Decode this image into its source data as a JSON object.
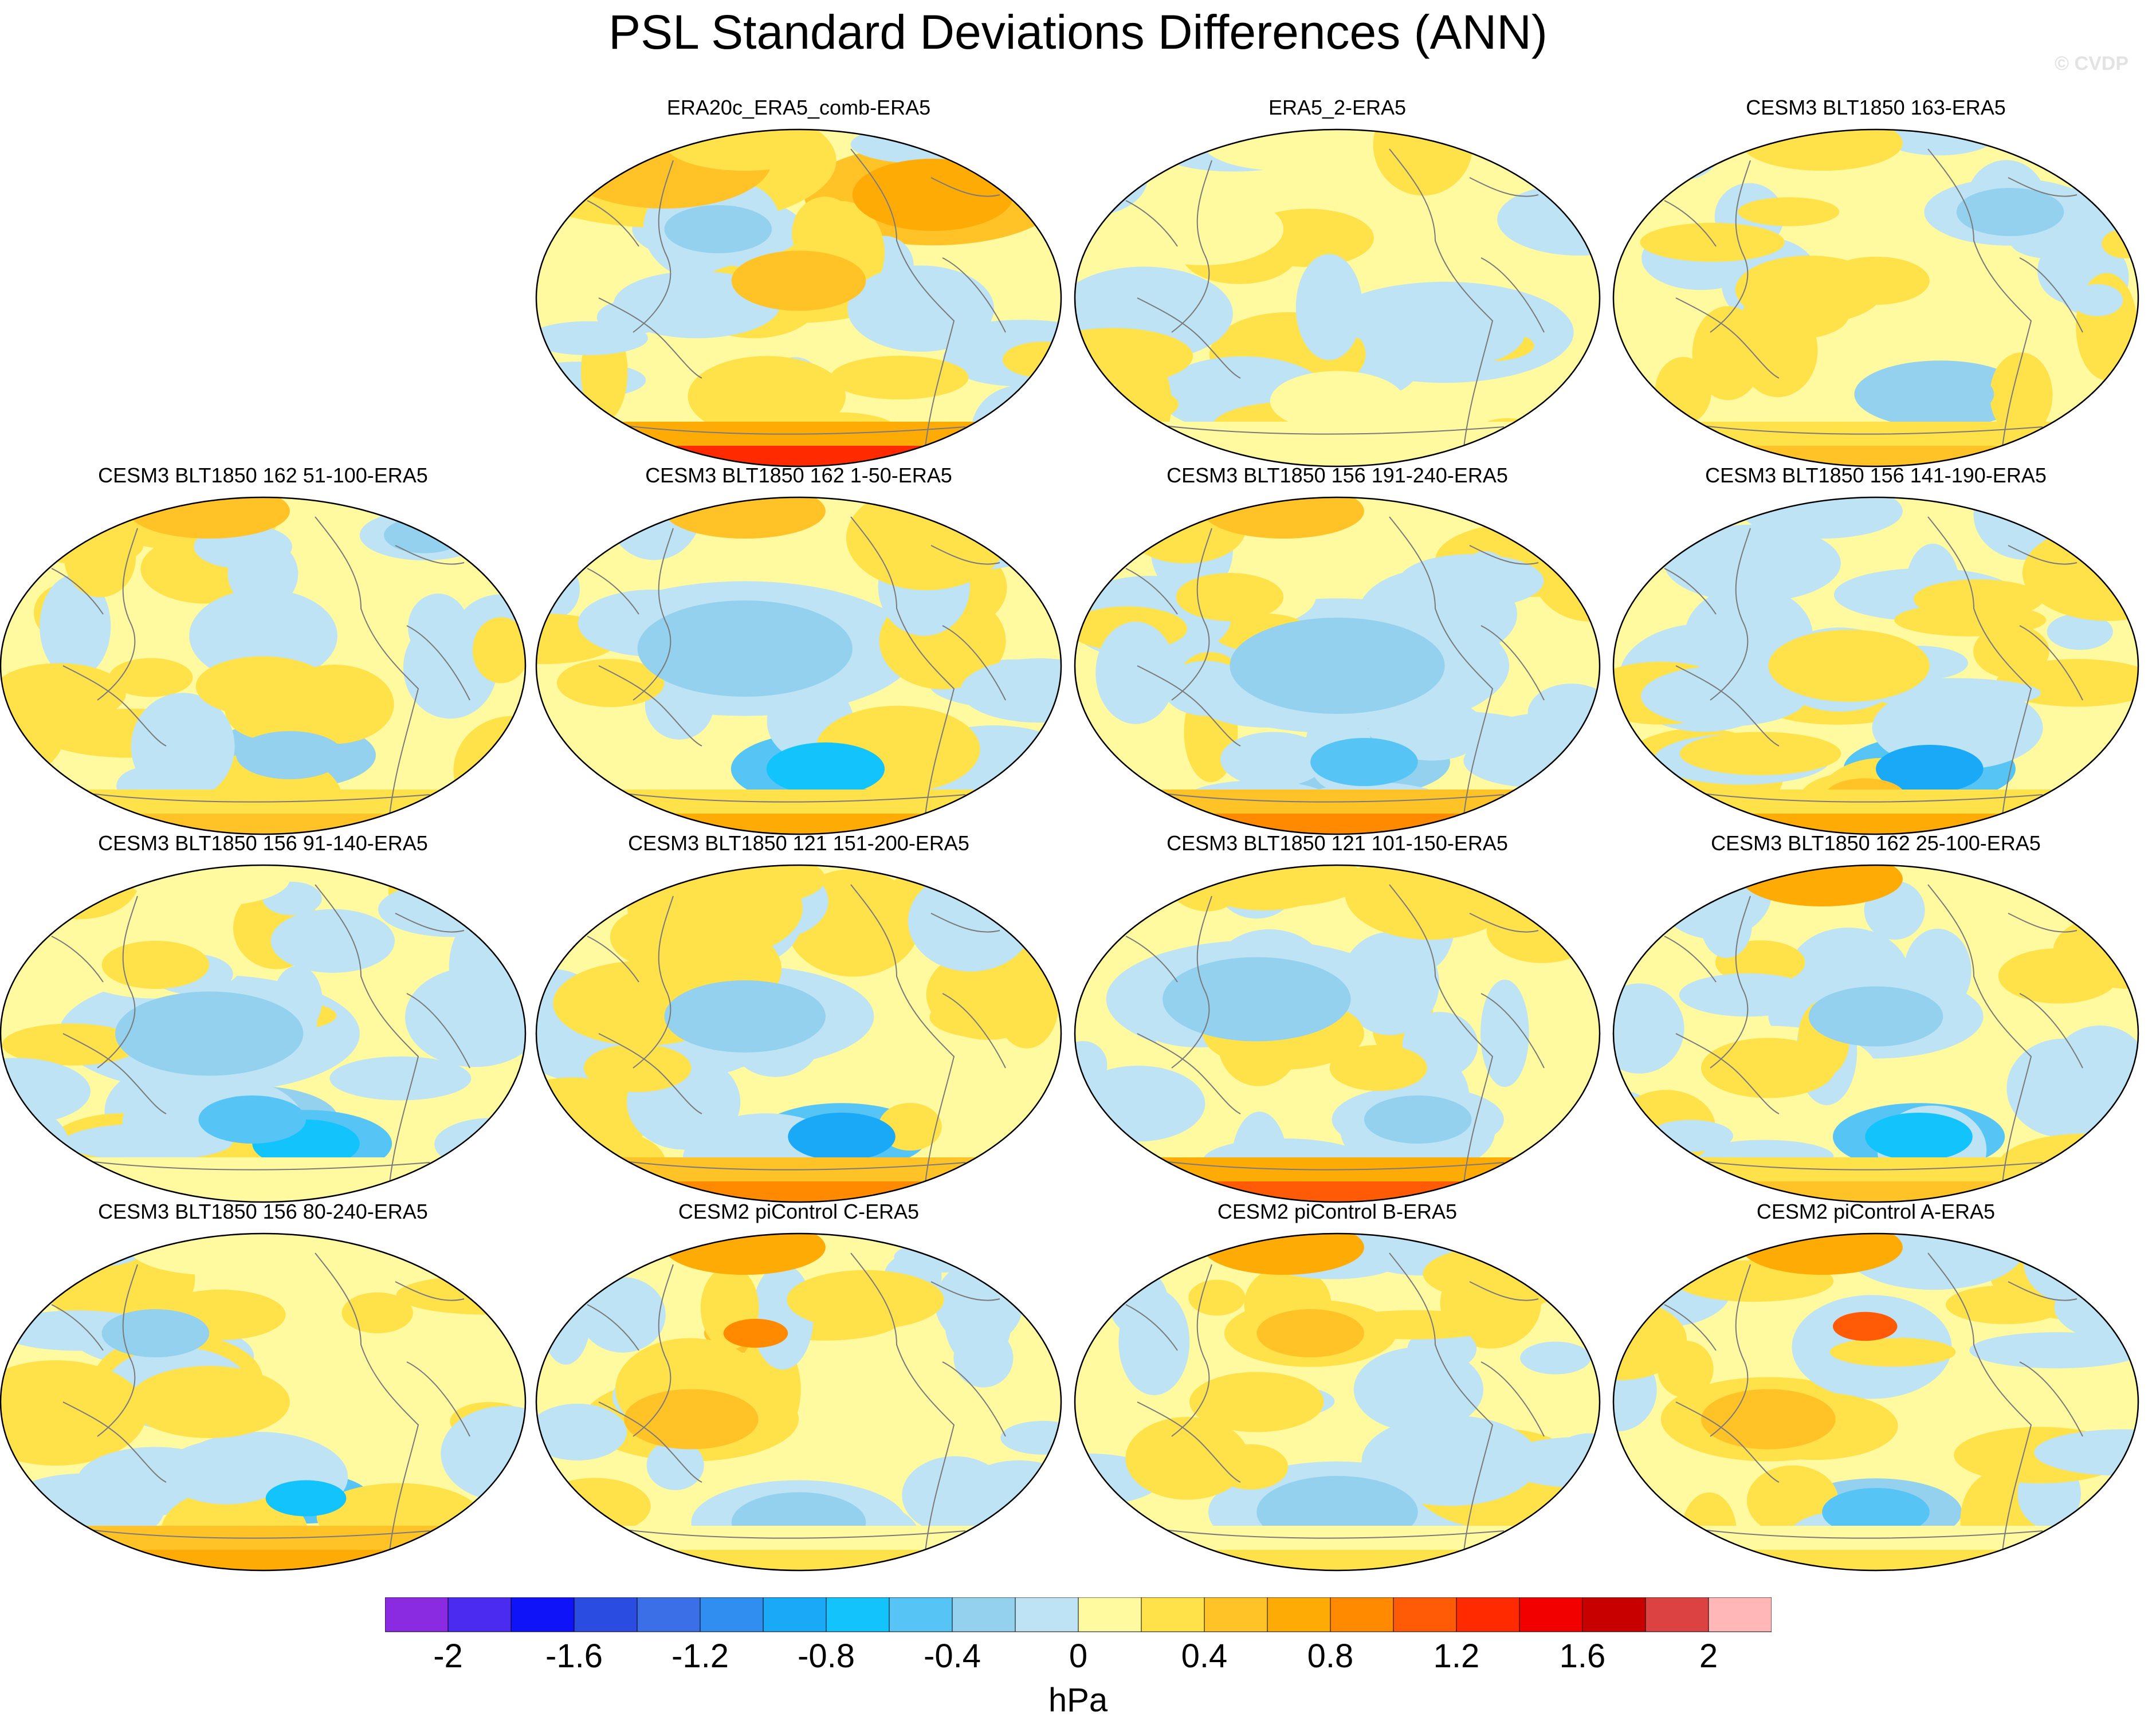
{
  "title": "PSL Standard Deviations Differences (ANN)",
  "watermark": "© CVDP",
  "panels": [
    {
      "label": "ERA20c_ERA5_comb-ERA5",
      "south_pole": 1.3,
      "north": 0.2,
      "blobs": [
        [
          0.4,
          0.25,
          0.1,
          0.4
        ],
        [
          0.7,
          0.75,
          0.2,
          0.3
        ],
        [
          -0.3,
          0.35,
          0.3,
          0.2
        ],
        [
          0.5,
          0.5,
          0.45,
          0.25
        ]
      ]
    },
    {
      "label": "ERA5_2-ERA5",
      "south_pole": 0.1,
      "north": 0.0,
      "blobs": [
        [
          0.1,
          0.25,
          0.3,
          0.3
        ],
        [
          -0.1,
          0.7,
          0.6,
          0.3
        ],
        [
          0.1,
          0.5,
          0.8,
          0.25
        ]
      ]
    },
    {
      "label": "CESM3 BLT1850 163-ERA5",
      "south_pole": 0.4,
      "north": 0.3,
      "blobs": [
        [
          -0.4,
          0.62,
          0.78,
          0.2
        ],
        [
          0.3,
          0.35,
          0.55,
          0.2
        ],
        [
          -0.3,
          0.75,
          0.25,
          0.2
        ],
        [
          0.2,
          0.5,
          0.45,
          0.2
        ]
      ]
    },
    {
      "label": "CESM3 BLT1850 162 51-100-ERA5",
      "south_pole": 0.5,
      "north": 0.4,
      "blobs": [
        [
          -0.4,
          0.55,
          0.76,
          0.2
        ],
        [
          0.3,
          0.12,
          0.58,
          0.25
        ],
        [
          0.3,
          0.5,
          0.56,
          0.25
        ],
        [
          -0.3,
          0.8,
          0.12,
          0.15
        ]
      ]
    },
    {
      "label": "CESM3 BLT1850 162 1-50-ERA5",
      "south_pole": 0.6,
      "north": 0.5,
      "blobs": [
        [
          -0.8,
          0.55,
          0.8,
          0.22
        ],
        [
          0.3,
          0.15,
          0.55,
          0.2
        ],
        [
          -0.3,
          0.4,
          0.45,
          0.4
        ]
      ]
    },
    {
      "label": "CESM3 BLT1850 156 191-240-ERA5",
      "south_pole": 0.8,
      "north": 0.5,
      "blobs": [
        [
          -0.5,
          0.55,
          0.78,
          0.2
        ],
        [
          0.3,
          0.3,
          0.3,
          0.2
        ],
        [
          -0.3,
          0.5,
          0.5,
          0.4
        ]
      ]
    },
    {
      "label": "CESM3 BLT1850 156 141-190-ERA5",
      "south_pole": 0.6,
      "north": -0.1,
      "blobs": [
        [
          -0.9,
          0.6,
          0.8,
          0.2
        ],
        [
          0.5,
          0.48,
          0.88,
          0.15
        ],
        [
          0.3,
          0.45,
          0.5,
          0.3
        ]
      ]
    },
    {
      "label": "CESM3 BLT1850 156 91-140-ERA5",
      "south_pole": 0.1,
      "north": 0.1,
      "blobs": [
        [
          -0.8,
          0.58,
          0.82,
          0.2
        ],
        [
          -0.5,
          0.48,
          0.75,
          0.2
        ],
        [
          0.3,
          0.3,
          0.3,
          0.2
        ],
        [
          -0.3,
          0.4,
          0.5,
          0.35
        ]
      ]
    },
    {
      "label": "CESM3 BLT1850 121 151-200-ERA5",
      "south_pole": 0.9,
      "north": 0.2,
      "blobs": [
        [
          -1.0,
          0.58,
          0.8,
          0.2
        ],
        [
          0.3,
          0.2,
          0.6,
          0.2
        ],
        [
          -0.3,
          0.4,
          0.45,
          0.3
        ]
      ]
    },
    {
      "label": "CESM3 BLT1850 121 101-150-ERA5",
      "south_pole": 1.1,
      "north": 0.2,
      "blobs": [
        [
          0.3,
          0.4,
          0.5,
          0.3
        ],
        [
          -0.3,
          0.35,
          0.4,
          0.35
        ],
        [
          -0.3,
          0.65,
          0.75,
          0.2
        ]
      ]
    },
    {
      "label": "CESM3 BLT1850 162 25-100-ERA5",
      "south_pole": 0.5,
      "north": 0.6,
      "blobs": [
        [
          -0.8,
          0.58,
          0.8,
          0.2
        ],
        [
          0.3,
          0.3,
          0.6,
          0.25
        ],
        [
          -0.3,
          0.5,
          0.45,
          0.25
        ]
      ]
    },
    {
      "label": "CESM3 BLT1850 156 80-240-ERA5",
      "south_pole": 0.7,
      "north": 0.1,
      "blobs": [
        [
          -0.7,
          0.58,
          0.78,
          0.15
        ],
        [
          0.3,
          0.4,
          0.5,
          0.3
        ],
        [
          -0.3,
          0.3,
          0.3,
          0.2
        ]
      ]
    },
    {
      "label": "CESM2 piControl C-ERA5",
      "south_pole": 0.3,
      "north": 0.7,
      "blobs": [
        [
          0.9,
          0.42,
          0.3,
          0.12
        ],
        [
          0.4,
          0.3,
          0.55,
          0.25
        ],
        [
          -0.3,
          0.5,
          0.85,
          0.25
        ]
      ]
    },
    {
      "label": "CESM2 piControl B-ERA5",
      "south_pole": 0.3,
      "north": 0.6,
      "blobs": [
        [
          0.5,
          0.45,
          0.3,
          0.2
        ],
        [
          0.3,
          0.35,
          0.5,
          0.25
        ],
        [
          -0.3,
          0.5,
          0.82,
          0.3
        ]
      ]
    },
    {
      "label": "CESM2 piControl A-ERA5",
      "south_pole": 0.3,
      "north": 0.7,
      "blobs": [
        [
          1.0,
          0.48,
          0.28,
          0.12
        ],
        [
          0.4,
          0.3,
          0.55,
          0.25
        ],
        [
          -0.6,
          0.5,
          0.82,
          0.2
        ]
      ]
    }
  ],
  "colorbar": {
    "colors": [
      "#8a2be2",
      "#4b2bf0",
      "#0f13f7",
      "#2b4ce0",
      "#3a6fe8",
      "#2f8ef0",
      "#1aa9f7",
      "#13c3fb",
      "#56c5f5",
      "#93d1ee",
      "#bde3f4",
      "#fffa9f",
      "#ffe14a",
      "#ffc227",
      "#ffab05",
      "#ff8a00",
      "#ff5a05",
      "#ff2a00",
      "#f20000",
      "#c90000",
      "#dc4242",
      "#ffb7b7"
    ],
    "tick_labels": [
      "-2",
      "-1.6",
      "-1.2",
      "-0.8",
      "-0.4",
      "0",
      "0.4",
      "0.8",
      "1.2",
      "1.6",
      "2"
    ],
    "unit": "hPa"
  }
}
